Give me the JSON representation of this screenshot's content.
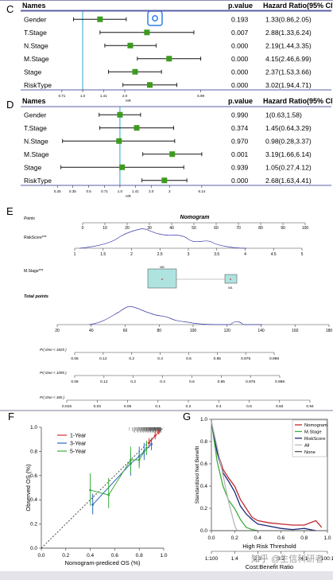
{
  "panel_labels": {
    "c": "C",
    "d": "D",
    "e": "E",
    "f": "F",
    "g": "G"
  },
  "scan_icon": "scan-icon",
  "colors": {
    "accent": "#5b5fa6",
    "marker": "#3d9b1f",
    "vline": "#2aa7c9",
    "nomo_line": "#3a3aa8",
    "nomo_box": "#aee3e0"
  },
  "chart_data": [
    {
      "type": "forest",
      "panel": "C",
      "headers": {
        "name": "Names",
        "p": "p.value",
        "hr": "Hazard Ratio(95% CI)"
      },
      "rows": [
        {
          "name": "Gender",
          "p": "0.193",
          "hr_text": "1.33(0.86,2.05)",
          "hr": 1.33,
          "lo": 0.86,
          "hi": 2.05
        },
        {
          "name": "T.Stage",
          "p": "0.007",
          "hr_text": "2.88(1.33,6.24)",
          "hr": 2.88,
          "lo": 1.33,
          "hi": 6.24
        },
        {
          "name": "N.Stage",
          "p": "0.000",
          "hr_text": "2.19(1.44,3.35)",
          "hr": 2.19,
          "lo": 1.44,
          "hi": 3.35
        },
        {
          "name": "M.Stage",
          "p": "0.000",
          "hr_text": "4.15(2.46,6.99)",
          "hr": 4.15,
          "lo": 2.46,
          "hi": 6.99
        },
        {
          "name": "Stage",
          "p": "0.000",
          "hr_text": "2.37(1.53,3.66)",
          "hr": 2.37,
          "lo": 1.53,
          "hi": 3.66
        },
        {
          "name": "RiskType",
          "p": "0.000",
          "hr_text": "3.02(1.94,4.71)",
          "hr": 3.02,
          "lo": 1.94,
          "hi": 4.71
        }
      ],
      "xticks": [
        "0.71",
        "1.0",
        "1.41",
        "2.0",
        "6.99"
      ],
      "xlabel": "HR",
      "xlim": [
        0.6,
        7.5
      ]
    },
    {
      "type": "forest",
      "panel": "D",
      "headers": {
        "name": "Names",
        "p": "p.value",
        "hr": "Hazard Ratio(95% CI)"
      },
      "rows": [
        {
          "name": "Gender",
          "p": "0.990",
          "hr_text": "1(0.63,1.58)",
          "hr": 1.0,
          "lo": 0.63,
          "hi": 1.58
        },
        {
          "name": "T.Stage",
          "p": "0.374",
          "hr_text": "1.45(0.64,3.29)",
          "hr": 1.45,
          "lo": 0.64,
          "hi": 3.29
        },
        {
          "name": "N.Stage",
          "p": "0.970",
          "hr_text": "0.98(0.28,3.37)",
          "hr": 0.98,
          "lo": 0.28,
          "hi": 3.37
        },
        {
          "name": "M.Stage",
          "p": "0.001",
          "hr_text": "3.19(1.66,6.14)",
          "hr": 3.19,
          "lo": 1.66,
          "hi": 6.14
        },
        {
          "name": "Stage",
          "p": "0.939",
          "hr_text": "1.05(0.27,4.12)",
          "hr": 1.05,
          "lo": 0.27,
          "hi": 4.12
        },
        {
          "name": "RiskType",
          "p": "0.000",
          "hr_text": "2.68(1.63,4.41)",
          "hr": 2.68,
          "lo": 1.63,
          "hi": 4.41
        }
      ],
      "xticks": [
        "0.25",
        "0.35",
        "0.5",
        "0.71",
        "1.0",
        "1.41",
        "2.0",
        "3",
        "6.14"
      ],
      "xlabel": "HR",
      "xlim": [
        0.22,
        6.6
      ]
    },
    {
      "type": "nomogram",
      "panel": "E",
      "title": "Nomogram",
      "rows": [
        {
          "label": "Points",
          "ticks": [
            "0",
            "10",
            "20",
            "30",
            "40",
            "50",
            "60",
            "70",
            "80",
            "90",
            "100"
          ]
        },
        {
          "label": "RiskScore***",
          "ticks": [
            "1",
            "1.5",
            "2",
            "2.5",
            "3",
            "3.5",
            "4",
            "4.5",
            "5"
          ]
        },
        {
          "label": "M.Stage***",
          "box_labels": [
            "M0",
            "M1"
          ]
        },
        {
          "label": "Total points",
          "ticks": [
            "20",
            "40",
            "60",
            "80",
            "100",
            "120",
            "140",
            "160",
            "180"
          ]
        },
        {
          "label": "Pr( time < 1825 )",
          "ticks": [
            "0.06",
            "0.12",
            "0.2",
            "0.4",
            "0.6",
            "0.85",
            "0.975",
            "0.998"
          ]
        },
        {
          "label": "Pr( time < 1095 )",
          "ticks": [
            "0.06",
            "0.12",
            "0.2",
            "0.4",
            "0.6",
            "0.85",
            "0.975",
            "0.998"
          ]
        },
        {
          "label": "Pr( time < 365 )",
          "ticks": [
            "0.015",
            "0.03",
            "0.06",
            "0.1",
            "0.2",
            "0.4",
            "0.6",
            "0.82",
            "0.94"
          ]
        }
      ]
    },
    {
      "type": "line",
      "panel": "F",
      "xlabel": "Nomogram-prediced OS (%)",
      "ylabel": "Observed OS (%)",
      "xlim": [
        0,
        1.0
      ],
      "ylim": [
        0,
        1.0
      ],
      "xticks": [
        "0.0",
        "0.2",
        "0.4",
        "0.6",
        "0.8",
        "1.0"
      ],
      "yticks": [
        "0.0",
        "0.2",
        "0.4",
        "0.6",
        "0.8",
        "1.0"
      ],
      "series": [
        {
          "name": "1-Year",
          "color": "#d62f2f",
          "x": [
            0.88,
            0.93,
            0.96
          ],
          "y": [
            0.87,
            0.93,
            0.96
          ],
          "lo": [
            0.83,
            0.9,
            0.94
          ],
          "hi": [
            0.91,
            0.96,
            0.98
          ]
        },
        {
          "name": "3-Year",
          "color": "#2d68c4",
          "x": [
            0.42,
            0.73,
            0.8,
            0.84,
            0.9
          ],
          "y": [
            0.36,
            0.7,
            0.76,
            0.8,
            0.86
          ],
          "lo": [
            0.28,
            0.6,
            0.68,
            0.73,
            0.81
          ],
          "hi": [
            0.45,
            0.8,
            0.84,
            0.87,
            0.91
          ]
        },
        {
          "name": "5-Year",
          "color": "#3cae3c",
          "x": [
            0.4,
            0.55,
            0.73,
            0.8,
            0.86
          ],
          "y": [
            0.48,
            0.44,
            0.73,
            0.73,
            0.83
          ],
          "lo": [
            0.35,
            0.33,
            0.62,
            0.66,
            0.77
          ],
          "hi": [
            0.62,
            0.58,
            0.84,
            0.8,
            0.89
          ]
        }
      ]
    },
    {
      "type": "line",
      "panel": "G",
      "xlabel": "High Risk Threshold",
      "xlabel2": "Cost:Benefit Ratio",
      "ylabel": "Standardized Net Benefit",
      "xlim": [
        0,
        1.0
      ],
      "ylim": [
        0,
        1.0
      ],
      "xticks": [
        "0.0",
        "0.2",
        "0.4",
        "0.6",
        "0.8",
        "1.0"
      ],
      "yticks": [
        "0.0",
        "0.2",
        "0.4",
        "0.6",
        "0.8",
        "1.0"
      ],
      "x2ticks": [
        "1:100",
        "1:4",
        "2:3",
        "3:2",
        "4:1",
        "100:1"
      ],
      "series": [
        {
          "name": "Nomogram",
          "color": "#c0282e",
          "x": [
            0,
            0.05,
            0.1,
            0.15,
            0.2,
            0.25,
            0.3,
            0.35,
            0.4,
            0.5,
            0.6,
            0.7,
            0.8,
            0.9,
            0.95
          ],
          "y": [
            0.98,
            0.72,
            0.55,
            0.47,
            0.4,
            0.28,
            0.2,
            0.12,
            0.09,
            0.07,
            0.06,
            0.05,
            0.05,
            0.09,
            0.03
          ]
        },
        {
          "name": "M.Stage",
          "color": "#3cae3c",
          "x": [
            0,
            0.05,
            0.1,
            0.15,
            0.2,
            0.25,
            0.3,
            0.35,
            0.4
          ],
          "y": [
            0.98,
            0.62,
            0.4,
            0.27,
            0.2,
            0.1,
            0.03,
            0.01,
            0.0
          ]
        },
        {
          "name": "RiskScore",
          "color": "#1a2a78",
          "x": [
            0,
            0.05,
            0.1,
            0.15,
            0.2,
            0.25,
            0.3,
            0.35,
            0.4,
            0.5,
            0.6,
            0.7,
            0.8,
            0.9
          ],
          "y": [
            0.98,
            0.7,
            0.52,
            0.44,
            0.35,
            0.22,
            0.15,
            0.1,
            0.06,
            0.04,
            0.02,
            0.01,
            0.02,
            0.0
          ]
        },
        {
          "name": "All",
          "color": "#b8b8b8",
          "x": [
            0,
            0.05,
            0.1,
            0.15,
            0.2,
            0.22
          ],
          "y": [
            0.98,
            0.75,
            0.5,
            0.25,
            0.05,
            0.0
          ]
        },
        {
          "name": "None",
          "color": "#555555",
          "x": [
            0,
            1.0
          ],
          "y": [
            0,
            0
          ]
        }
      ]
    }
  ],
  "watermark": "知乎 @生信科研者"
}
